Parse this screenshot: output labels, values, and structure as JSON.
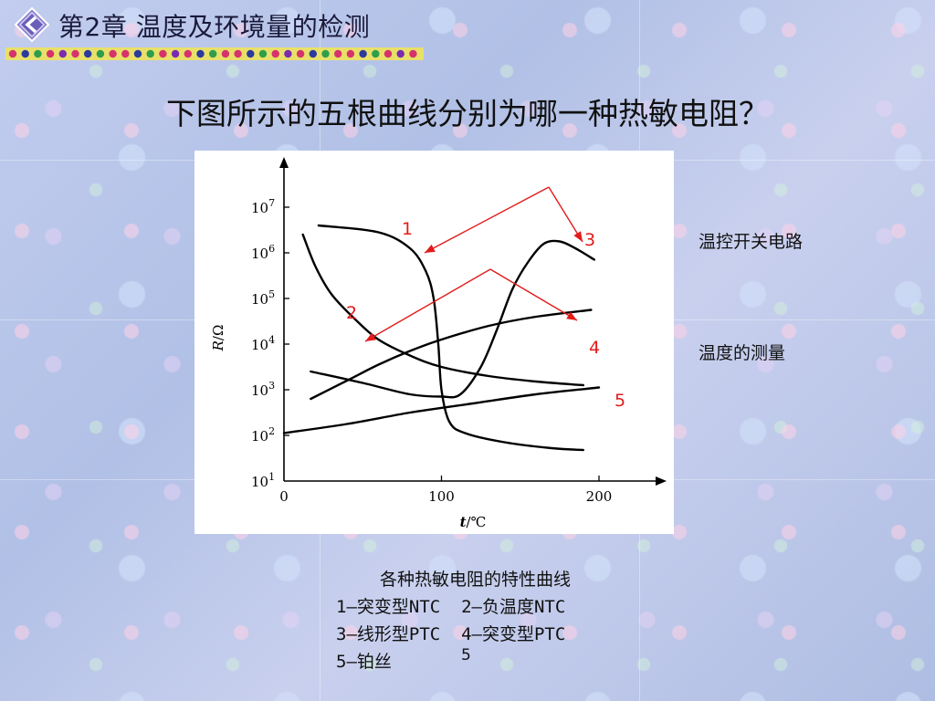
{
  "header": {
    "chapter_title": "第2章 温度及环境量的检测",
    "nav_icon": "diamond-chevron-left-icon",
    "dot_colors": [
      "#d6336c",
      "#2b3a9e",
      "#2e9e4b",
      "#d6336c",
      "#7a2bb0",
      "#d6336c",
      "#2b3a9e",
      "#2e9e4b",
      "#d6336c"
    ]
  },
  "question": "下图所示的五根曲线分别为哪一种热敏电阻？",
  "side_labels": {
    "upper": "温控开关电路",
    "lower": "温度的测量"
  },
  "caption": {
    "title": "各种热敏电阻的特性曲线",
    "line1": "1—突变型NTC  2—负温度NTC",
    "line2": "3—线形型PTC  4—突变型PTC",
    "line3": "5—铂丝"
  },
  "page_number": "5",
  "chart_data": {
    "type": "line",
    "y_scale": "log",
    "ylim_exponent": [
      1,
      7
    ],
    "xlim": [
      0,
      200
    ],
    "x_ticks": [
      "0",
      "100",
      "200"
    ],
    "y_ticks": [
      {
        "base": "10",
        "exp": "1"
      },
      {
        "base": "10",
        "exp": "2"
      },
      {
        "base": "10",
        "exp": "3"
      },
      {
        "base": "10",
        "exp": "4"
      },
      {
        "base": "10",
        "exp": "5"
      },
      {
        "base": "10",
        "exp": "6"
      },
      {
        "base": "10",
        "exp": "7"
      }
    ],
    "ylabel": {
      "var": "R",
      "unit": "/Ω"
    },
    "xlabel": {
      "var": "t",
      "unit": "/℃"
    },
    "annotation_color": "#e21b1b",
    "series": [
      {
        "label": "1",
        "points": [
          [
            22,
            6.6
          ],
          [
            60,
            6.45
          ],
          [
            80,
            6.1
          ],
          [
            90,
            5.6
          ],
          [
            95,
            5.0
          ],
          [
            98,
            4.0
          ],
          [
            100,
            3.0
          ],
          [
            105,
            2.3
          ],
          [
            115,
            2.05
          ],
          [
            140,
            1.85
          ],
          [
            170,
            1.72
          ],
          [
            190,
            1.68
          ]
        ]
      },
      {
        "label": "2",
        "points": [
          [
            12,
            6.4
          ],
          [
            20,
            5.7
          ],
          [
            30,
            5.1
          ],
          [
            45,
            4.55
          ],
          [
            60,
            4.1
          ],
          [
            80,
            3.75
          ],
          [
            100,
            3.5
          ],
          [
            130,
            3.3
          ],
          [
            160,
            3.18
          ],
          [
            190,
            3.1
          ]
        ]
      },
      {
        "label": "3",
        "points": [
          [
            17,
            2.8
          ],
          [
            40,
            3.2
          ],
          [
            60,
            3.55
          ],
          [
            80,
            3.85
          ],
          [
            100,
            4.1
          ],
          [
            130,
            4.4
          ],
          [
            160,
            4.6
          ],
          [
            195,
            4.75
          ]
        ]
      },
      {
        "label": "4",
        "points": [
          [
            17,
            3.4
          ],
          [
            50,
            3.15
          ],
          [
            80,
            2.9
          ],
          [
            100,
            2.85
          ],
          [
            112,
            2.9
          ],
          [
            125,
            3.5
          ],
          [
            135,
            4.3
          ],
          [
            145,
            5.2
          ],
          [
            155,
            5.8
          ],
          [
            165,
            6.2
          ],
          [
            175,
            6.25
          ],
          [
            185,
            6.1
          ],
          [
            197,
            5.85
          ]
        ]
      },
      {
        "label": "5",
        "points": [
          [
            0,
            2.05
          ],
          [
            40,
            2.25
          ],
          [
            80,
            2.5
          ],
          [
            120,
            2.7
          ],
          [
            160,
            2.9
          ],
          [
            200,
            3.05
          ]
        ]
      }
    ]
  }
}
